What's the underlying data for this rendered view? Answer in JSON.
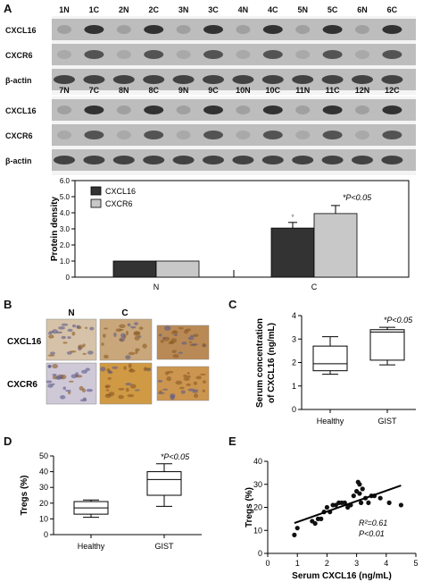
{
  "panels": {
    "A": "A",
    "B": "B",
    "C": "C",
    "D": "D",
    "E": "E"
  },
  "blot": {
    "row1_lanes": [
      "1N",
      "1C",
      "2N",
      "2C",
      "3N",
      "3C",
      "4N",
      "4C",
      "5N",
      "5C",
      "6N",
      "6C"
    ],
    "row2_lanes": [
      "7N",
      "7C",
      "8N",
      "8C",
      "9N",
      "9C",
      "10N",
      "10C",
      "11N",
      "11C",
      "12N",
      "12C"
    ],
    "band_labels": [
      "CXCL16",
      "CXCR6",
      "β-actin"
    ]
  },
  "ihc": {
    "col_labels": [
      "N",
      "C"
    ],
    "row_labels": [
      "CXCL16",
      "CXCR6"
    ]
  },
  "chart_data": [
    {
      "panel": "A",
      "type": "bar",
      "categories": [
        "N",
        "C"
      ],
      "series": [
        {
          "name": "CXCL16",
          "values": [
            1.0,
            3.05
          ],
          "errors": [
            0,
            0.35
          ],
          "color": "#333333"
        },
        {
          "name": "CXCR6",
          "values": [
            1.0,
            3.95
          ],
          "errors": [
            0,
            0.5
          ],
          "color": "#c8c8c8"
        }
      ],
      "ylabel": "Protein density",
      "ylim": [
        0,
        6
      ],
      "yticks": [
        "0",
        "1.0",
        "2.0",
        "3.0",
        "4.0",
        "5.0",
        "6.0"
      ],
      "annotations": {
        "star": "*",
        "p": "*P<0.05"
      },
      "legend": "top-left"
    },
    {
      "panel": "C",
      "type": "box",
      "categories": [
        "Healthy",
        "GIST"
      ],
      "boxes": [
        {
          "min": 1.5,
          "q1": 1.65,
          "median": 1.95,
          "q3": 2.7,
          "max": 3.1
        },
        {
          "min": 1.9,
          "q1": 2.1,
          "median": 3.3,
          "q3": 3.4,
          "max": 3.5
        }
      ],
      "ylabel": "Serum concentration of CXCL16 (ng/mL)",
      "ylim": [
        0,
        4
      ],
      "yticks": [
        "0",
        "1",
        "2",
        "3",
        "4"
      ],
      "annotations": {
        "p": "*P<0.05"
      }
    },
    {
      "panel": "D",
      "type": "box",
      "categories": [
        "Healthy",
        "GIST"
      ],
      "boxes": [
        {
          "min": 11,
          "q1": 13,
          "median": 17,
          "q3": 21,
          "max": 22
        },
        {
          "min": 18,
          "q1": 25,
          "median": 35,
          "q3": 40,
          "max": 45
        }
      ],
      "ylabel": "Tregs (%)",
      "ylim": [
        0,
        50
      ],
      "yticks": [
        "0",
        "10",
        "20",
        "30",
        "40",
        "50"
      ],
      "annotations": {
        "p": "*P<0.05"
      }
    },
    {
      "panel": "E",
      "type": "scatter",
      "x": [
        0.9,
        1.0,
        1.5,
        1.6,
        1.7,
        1.8,
        1.9,
        2.0,
        2.1,
        2.2,
        2.3,
        2.4,
        2.5,
        2.6,
        2.7,
        2.8,
        2.9,
        3.0,
        3.05,
        3.1,
        3.1,
        3.15,
        3.2,
        3.3,
        3.4,
        3.5,
        3.6,
        3.8,
        4.1,
        4.5
      ],
      "y": [
        8,
        11,
        14,
        13,
        15,
        15,
        18,
        20,
        18,
        21,
        21,
        22,
        22,
        22,
        20,
        21,
        25,
        27,
        31,
        30,
        26,
        22,
        28,
        24,
        22,
        25,
        25,
        24,
        22,
        21
      ],
      "fit_line": {
        "x": [
          0.9,
          4.5
        ],
        "y": [
          13.2,
          29.5
        ]
      },
      "xlabel": "Serum CXCL16 (ng/mL)",
      "ylabel": "Tregs (%)",
      "xlim": [
        0,
        5
      ],
      "ylim": [
        0,
        40
      ],
      "xticks": [
        "0",
        "1",
        "2",
        "3",
        "4",
        "5"
      ],
      "yticks": [
        "0",
        "10",
        "20",
        "30",
        "40"
      ],
      "annotations": {
        "r2": "R²=0.61",
        "p": "P<0.01"
      }
    }
  ]
}
